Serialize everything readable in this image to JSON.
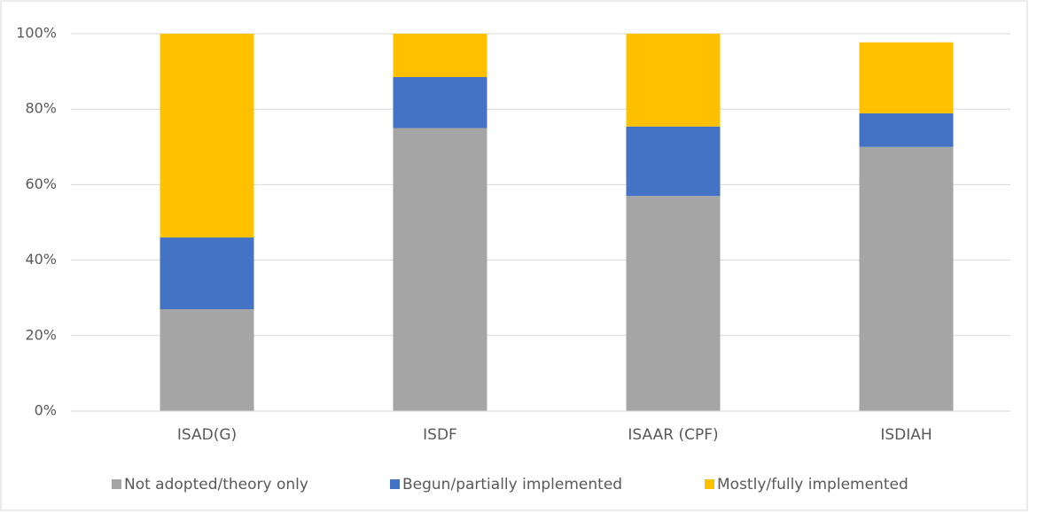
{
  "chart_data": {
    "type": "stacked_bar",
    "categories": [
      "ISAD(G)",
      "ISDF",
      "ISAAR (CPF)",
      "ISDIAH"
    ],
    "series": [
      {
        "name": "Not adopted/theory only",
        "color": "#a5a5a5",
        "values": [
          27,
          75,
          57,
          70
        ]
      },
      {
        "name": "Begun/partially implemented",
        "color": "#4472c4",
        "values": [
          19,
          13.5,
          18.4,
          8.9
        ]
      },
      {
        "name": "Mostly/fully implemented",
        "color": "#ffc000",
        "values": [
          54,
          11.5,
          24.6,
          18.8
        ]
      }
    ],
    "ylim": [
      0,
      100
    ],
    "yticks": [
      {
        "value": 0,
        "label": "0%"
      },
      {
        "value": 20,
        "label": "20%"
      },
      {
        "value": 40,
        "label": "40%"
      },
      {
        "value": 60,
        "label": "60%"
      },
      {
        "value": 80,
        "label": "80%"
      },
      {
        "value": 100,
        "label": "100%"
      }
    ],
    "grid": true,
    "legend": "bottom"
  }
}
